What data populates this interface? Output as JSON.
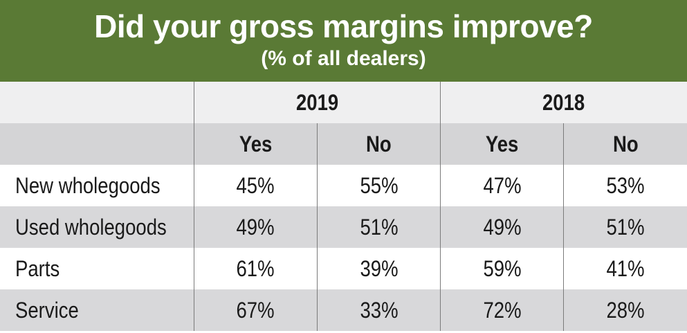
{
  "chart_data": {
    "type": "table",
    "title": "Did your gross margins improve?",
    "subtitle": "(% of all dealers)",
    "years": [
      "2019",
      "2018"
    ],
    "subheaders": [
      "Yes",
      "No",
      "Yes",
      "No"
    ],
    "rows": [
      {
        "label": "New wholegoods",
        "values": [
          "45%",
          "55%",
          "47%",
          "53%"
        ]
      },
      {
        "label": "Used wholegoods",
        "values": [
          "49%",
          "51%",
          "49%",
          "51%"
        ]
      },
      {
        "label": "Parts",
        "values": [
          "61%",
          "39%",
          "59%",
          "41%"
        ]
      },
      {
        "label": "Service",
        "values": [
          "67%",
          "33%",
          "72%",
          "28%"
        ]
      }
    ]
  },
  "colors": {
    "banner": "#5a7a35",
    "header_light": "#efeff0",
    "header_dark": "#d4d4d6",
    "row_alt": "#d8d8da"
  }
}
